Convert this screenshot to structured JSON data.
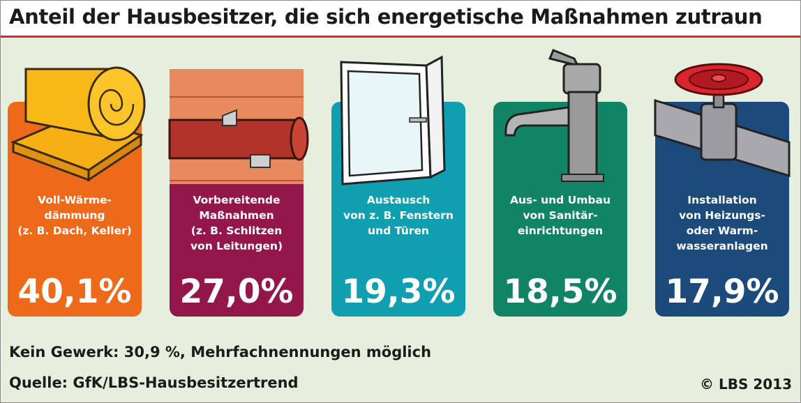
{
  "header": {
    "title": "Anteil der Hausbesitzer, die sich energetische Maßnahmen zutraun"
  },
  "chart_data": {
    "type": "bar",
    "title": "Anteil der Hausbesitzer, die sich energetische Maßnahmen zutraun",
    "unit": "%",
    "categories": [
      "Voll-Wärmedämmung (z. B. Dach, Keller)",
      "Vorbereitende Maßnahmen (z. B. Schlitzen von Leitungen)",
      "Austausch von z. B. Fenstern und Türen",
      "Aus- und Umbau von Sanitäreinrichtungen",
      "Installation von Heizungs- oder Warmwasseranlagen"
    ],
    "values": [
      40.1,
      27.0,
      19.3,
      18.5,
      17.9
    ],
    "label_lines": [
      [
        "Voll-Wärme-",
        "dämmung",
        "(z. B. Dach, Keller)"
      ],
      [
        "Vorbereitende",
        "Maßnahmen",
        "(z. B. Schlitzen",
        "von Leitungen)"
      ],
      [
        "Austausch",
        "von z. B. Fenstern",
        "und Türen"
      ],
      [
        "Aus- und Umbau",
        "von Sanitär-",
        "einrichtungen"
      ],
      [
        "Installation",
        "von Heizungs-",
        "oder Warm-",
        "wasseranlagen"
      ]
    ],
    "value_labels": [
      "40,1%",
      "27,0%",
      "19,3%",
      "18,5%",
      "17,9%"
    ],
    "colors": [
      "#ee6a1b",
      "#93174a",
      "#109fb0",
      "#118466",
      "#1c4a7a"
    ],
    "icons": [
      "insulation-roll-icon",
      "pipe-in-wall-icon",
      "window-icon",
      "faucet-icon",
      "valve-pipe-icon"
    ]
  },
  "footer": {
    "note": "Kein Gewerk: 30,9 %, Mehrfachnennungen möglich",
    "source": "Quelle: GfK/LBS-Hausbesitzertrend",
    "copyright": "© LBS 2013"
  }
}
